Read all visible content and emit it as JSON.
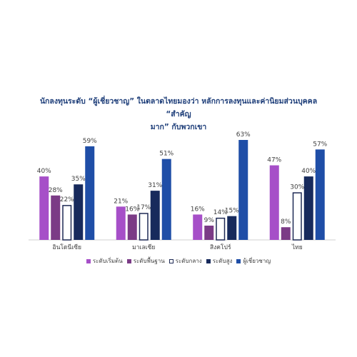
{
  "chart_data": {
    "type": "bar",
    "title_lines": [
      "นักลงทุนระดับ “ผู้เชี่ยวชาญ” ในตลาดไทยมองว่า หลักการลงทุนและค่านิยมส่วนบุคคล “สำคัญ",
      "มาก” กับพวกเขา"
    ],
    "categories": [
      "อินโดนีเซีย",
      "มาเลเซีย",
      "สิงคโปร์",
      "ไทย"
    ],
    "series": [
      {
        "name": "ระดับเริ่มต้น",
        "color": "#a64fc8",
        "outline": false,
        "values": [
          40,
          21,
          16,
          47
        ],
        "labels": [
          "40%",
          "21%",
          "16%",
          "47%"
        ]
      },
      {
        "name": "ระดับพื้นฐาน",
        "color": "#7b3b86",
        "outline": false,
        "values": [
          28,
          16,
          9,
          8
        ],
        "labels": [
          "28%",
          "16%",
          "9%",
          "8%"
        ]
      },
      {
        "name": "ระดับกลาง",
        "color": "#1f2a55",
        "outline": true,
        "values": [
          22,
          17,
          14,
          30
        ],
        "labels": [
          "22%",
          "17%",
          "14%",
          "30%"
        ]
      },
      {
        "name": "ระดับสูง",
        "color": "#172a5c",
        "outline": false,
        "values": [
          35,
          31,
          15,
          40
        ],
        "labels": [
          "35%",
          "31%",
          "15%",
          "40%"
        ]
      },
      {
        "name": "ผู้เชี่ยวชาญ",
        "color": "#1f4ea7",
        "outline": false,
        "values": [
          59,
          51,
          63,
          57
        ],
        "labels": [
          "59%",
          "51%",
          "63%",
          "57%"
        ]
      }
    ],
    "ylim": [
      0,
      63
    ],
    "grid": false,
    "legend_position": "bottom"
  }
}
